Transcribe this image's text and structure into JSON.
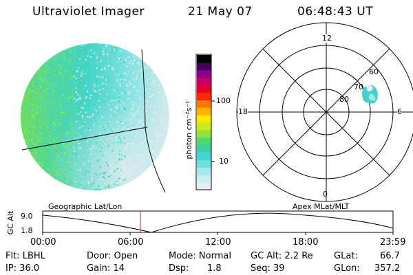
{
  "header": {
    "instrument": "Ultraviolet Imager",
    "date": "21 May 07",
    "time": "06:48:43 UT"
  },
  "colorbar": {
    "unit_label": "photon cm⁻²s⁻¹",
    "ticks": [
      "100",
      "10"
    ],
    "colors": [
      "#e8eef0",
      "#c8eef0",
      "#a8e8ee",
      "#6ee0e0",
      "#40d4d4",
      "#3cd0a8",
      "#50d870",
      "#8ee43a",
      "#c8ec20",
      "#ffe800",
      "#ffb400",
      "#ff7800",
      "#ff2800",
      "#e8002c",
      "#c80060",
      "#8c0090",
      "#46005a",
      "#000000"
    ]
  },
  "polar_plot": {
    "mlt_labels": {
      "top": "12",
      "left": "18",
      "right": "6",
      "bottom": "0"
    },
    "lat_labels": [
      "80",
      "70",
      "60"
    ]
  },
  "timeline": {
    "left_label": "Geographic Lat/Lon",
    "right_label": "Apex MLat/MLT",
    "y_axis_label": "GC Alt",
    "y_max": "9.0",
    "y_min": "1.8",
    "x_ticks": [
      "00:00",
      "06:00",
      "12:00",
      "18:00",
      "23:59"
    ]
  },
  "status": {
    "flt": "Flt: LBHL",
    "ip": "IP: 36.0",
    "door": "Door: Open",
    "gain": "Gain: 14",
    "mode": "Mode: Normal",
    "dsp_label": "Dsp:",
    "dsp_value": "1.8",
    "gc_alt": "GC Alt: 2.2 Re",
    "seq": "Seq: 39",
    "glat_label": "GLat:",
    "glat_value": "66.7",
    "glon_label": "GLon:",
    "glon_value": "357.2"
  }
}
